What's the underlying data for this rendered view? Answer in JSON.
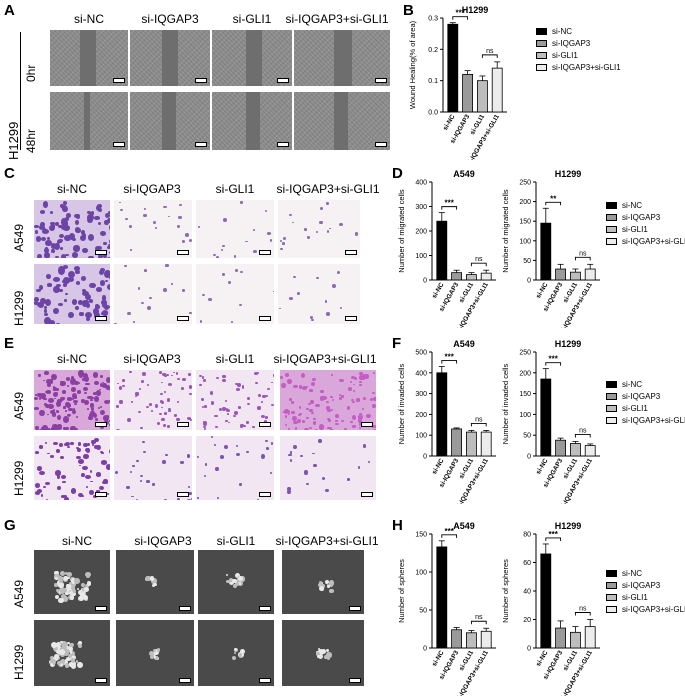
{
  "panel_letters": [
    "A",
    "B",
    "C",
    "D",
    "E",
    "F",
    "G",
    "H"
  ],
  "groups": [
    "si-NC",
    "si-IQGAP3",
    "si-GLI1",
    "si-IQGAP3+si-GLI1"
  ],
  "colors": {
    "si_nc": "#000000",
    "si_iqgap3": "#9a9a9a",
    "si_gli1": "#bdbdbd",
    "combo": "#ececec"
  },
  "panel_a": {
    "cell_line": "H1299",
    "times": [
      "0hr",
      "48hr"
    ]
  },
  "panel_c": {
    "rows": [
      "A549",
      "H1299"
    ]
  },
  "panel_e": {
    "rows": [
      "A549",
      "H1299"
    ]
  },
  "panel_g": {
    "rows": [
      "A549",
      "H1299"
    ]
  },
  "chart_data": [
    {
      "id": "B",
      "type": "bar",
      "title": "H1299",
      "ylabel": "Wound Healing(% of area)",
      "categories": [
        "si-NC",
        "si-IQGAP3",
        "si-GLI1",
        "si-IQGAP3+si-GLI1"
      ],
      "values": [
        0.28,
        0.12,
        0.1,
        0.14
      ],
      "errors": [
        0.005,
        0.012,
        0.015,
        0.02
      ],
      "ylim": [
        0,
        0.3
      ],
      "yticks": [
        "0.0",
        "0.1",
        "0.2",
        "0.3"
      ],
      "annotations": [
        "***",
        "ns"
      ]
    },
    {
      "id": "D-A549",
      "type": "bar",
      "title": "A549",
      "ylabel": "Number of migrated cells",
      "categories": [
        "si-NC",
        "si-IQGAP3",
        "si-GLI1",
        "si-IQGAP3+si-GLI1"
      ],
      "values": [
        240,
        30,
        22,
        28
      ],
      "errors": [
        35,
        10,
        8,
        12
      ],
      "ylim": [
        0,
        400
      ],
      "yticks": [
        "0",
        "100",
        "200",
        "300",
        "400"
      ],
      "annotations": [
        "***",
        "ns"
      ]
    },
    {
      "id": "D-H1299",
      "type": "bar",
      "title": "H1299",
      "ylabel": "Number of migrated cells",
      "categories": [
        "si-NC",
        "si-IQGAP3",
        "si-GLI1",
        "si-IQGAP3+si-GLI1"
      ],
      "values": [
        145,
        28,
        20,
        28
      ],
      "errors": [
        38,
        12,
        8,
        12
      ],
      "ylim": [
        0,
        250
      ],
      "yticks": [
        "0",
        "50",
        "100",
        "150",
        "200",
        "250"
      ],
      "annotations": [
        "**",
        "ns"
      ]
    },
    {
      "id": "F-A549",
      "type": "bar",
      "title": "A549",
      "ylabel": "Number of invaded cells",
      "categories": [
        "si-NC",
        "si-IQGAP3",
        "si-GLI1",
        "si-IQGAP3+si-GLI1"
      ],
      "values": [
        400,
        130,
        115,
        115
      ],
      "errors": [
        30,
        5,
        8,
        8
      ],
      "ylim": [
        0,
        500
      ],
      "yticks": [
        "0",
        "100",
        "200",
        "300",
        "400",
        "500"
      ],
      "annotations": [
        "***",
        "ns"
      ]
    },
    {
      "id": "F-H1299",
      "type": "bar",
      "title": "H1299",
      "ylabel": "Number of invaded cells",
      "categories": [
        "si-NC",
        "si-IQGAP3",
        "si-GLI1",
        "si-IQGAP3+si-GLI1"
      ],
      "values": [
        185,
        38,
        30,
        25
      ],
      "errors": [
        25,
        5,
        5,
        4
      ],
      "ylim": [
        0,
        250
      ],
      "yticks": [
        "0",
        "50",
        "100",
        "150",
        "200",
        "250"
      ],
      "annotations": [
        "***",
        "ns"
      ]
    },
    {
      "id": "H-A549",
      "type": "bar",
      "title": "A549",
      "ylabel": "Number of spheres",
      "categories": [
        "si-NC",
        "si-IQGAP3",
        "si-GLI1",
        "si-IQGAP3+si-GLI1"
      ],
      "values": [
        133,
        24,
        20,
        22
      ],
      "errors": [
        8,
        3,
        3,
        4
      ],
      "ylim": [
        0,
        150
      ],
      "yticks": [
        "0",
        "50",
        "100",
        "150"
      ],
      "annotations": [
        "***",
        "ns"
      ]
    },
    {
      "id": "H-H1299",
      "type": "bar",
      "title": "H1299",
      "ylabel": "Number of spheres",
      "categories": [
        "si-NC",
        "si-IQGAP3",
        "si-GLI1",
        "si-IQGAP3+si-GLI1"
      ],
      "values": [
        66,
        14,
        11,
        15
      ],
      "errors": [
        7,
        5,
        4,
        5
      ],
      "ylim": [
        0,
        80
      ],
      "yticks": [
        "0",
        "20",
        "40",
        "60",
        "80"
      ],
      "annotations": [
        "***",
        "ns"
      ]
    }
  ]
}
